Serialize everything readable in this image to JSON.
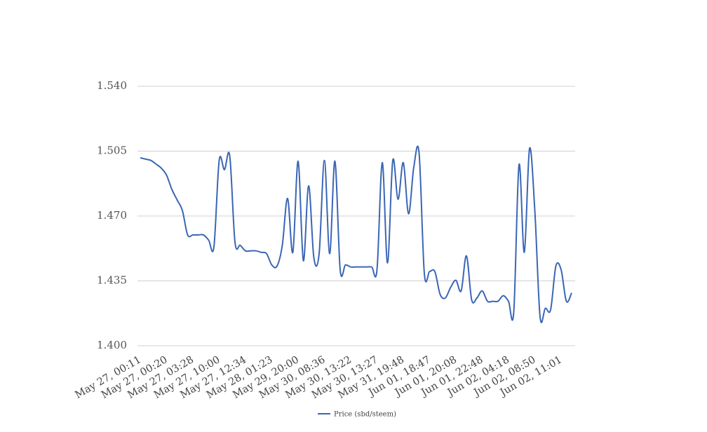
{
  "chart_data": {
    "type": "line",
    "categories": [
      "May 27, 00:11",
      null,
      null,
      null,
      null,
      "May 27, 00:20",
      null,
      null,
      null,
      null,
      "May 27, 03:28",
      null,
      null,
      null,
      null,
      "May 27, 10:00",
      null,
      null,
      null,
      null,
      "May 27, 12:34",
      null,
      null,
      null,
      null,
      "May 28, 01:23",
      null,
      null,
      null,
      null,
      "May 29, 20:00",
      null,
      null,
      null,
      null,
      "May 30, 08:36",
      null,
      null,
      null,
      null,
      "May 30, 13:22",
      null,
      null,
      null,
      null,
      "May 30, 13:27",
      null,
      null,
      null,
      null,
      "May 31, 19:48",
      null,
      null,
      null,
      null,
      "Jun 01, 18:47",
      null,
      null,
      null,
      null,
      "Jun 01, 20:08",
      null,
      null,
      null,
      null,
      "Jun 01, 22:48",
      null,
      null,
      null,
      null,
      "Jun 02, 04:18",
      null,
      null,
      null,
      null,
      "Jun 02, 08:50",
      null,
      null,
      null,
      null,
      "Jun 02, 11:01",
      null,
      null
    ],
    "series": [
      {
        "name": "Price (sbd/steem)",
        "color": "#3a66b5",
        "values": [
          1.5014,
          1.5007,
          1.5,
          1.498,
          1.4958,
          1.492,
          1.4844,
          1.4787,
          1.473,
          1.4598,
          1.4598,
          1.4598,
          1.4598,
          1.457,
          1.4534,
          1.5,
          1.495,
          1.5026,
          1.456,
          1.4542,
          1.4512,
          1.4512,
          1.4512,
          1.4504,
          1.4497,
          1.4436,
          1.443,
          1.4542,
          1.4795,
          1.4504,
          1.4996,
          1.4459,
          1.4863,
          1.4474,
          1.4497,
          1.5,
          1.4497,
          1.4996,
          1.441,
          1.4436,
          1.4425,
          1.4425,
          1.4425,
          1.4425,
          1.4425,
          1.441,
          1.4988,
          1.4447,
          1.5,
          1.479,
          1.4988,
          1.4712,
          1.4965,
          1.504,
          1.439,
          1.44,
          1.44,
          1.4277,
          1.4258,
          1.4315,
          1.4353,
          1.4296,
          1.4485,
          1.4247,
          1.4258,
          1.4296,
          1.424,
          1.424,
          1.424,
          1.427,
          1.424,
          1.4183,
          1.4977,
          1.4504,
          1.5064,
          1.473,
          1.4156,
          1.4202,
          1.4194,
          1.4429,
          1.441,
          1.424,
          1.4285
        ]
      }
    ],
    "ylim": [
      1.4,
      1.54
    ],
    "yticks": [
      {
        "value": 1.4,
        "label": "1.400"
      },
      1.435,
      {
        "value": 1.47,
        "label": "1.470"
      },
      1.505,
      {
        "value": 1.54,
        "label": "1.540"
      }
    ],
    "grid": true,
    "legend": "bottom"
  }
}
